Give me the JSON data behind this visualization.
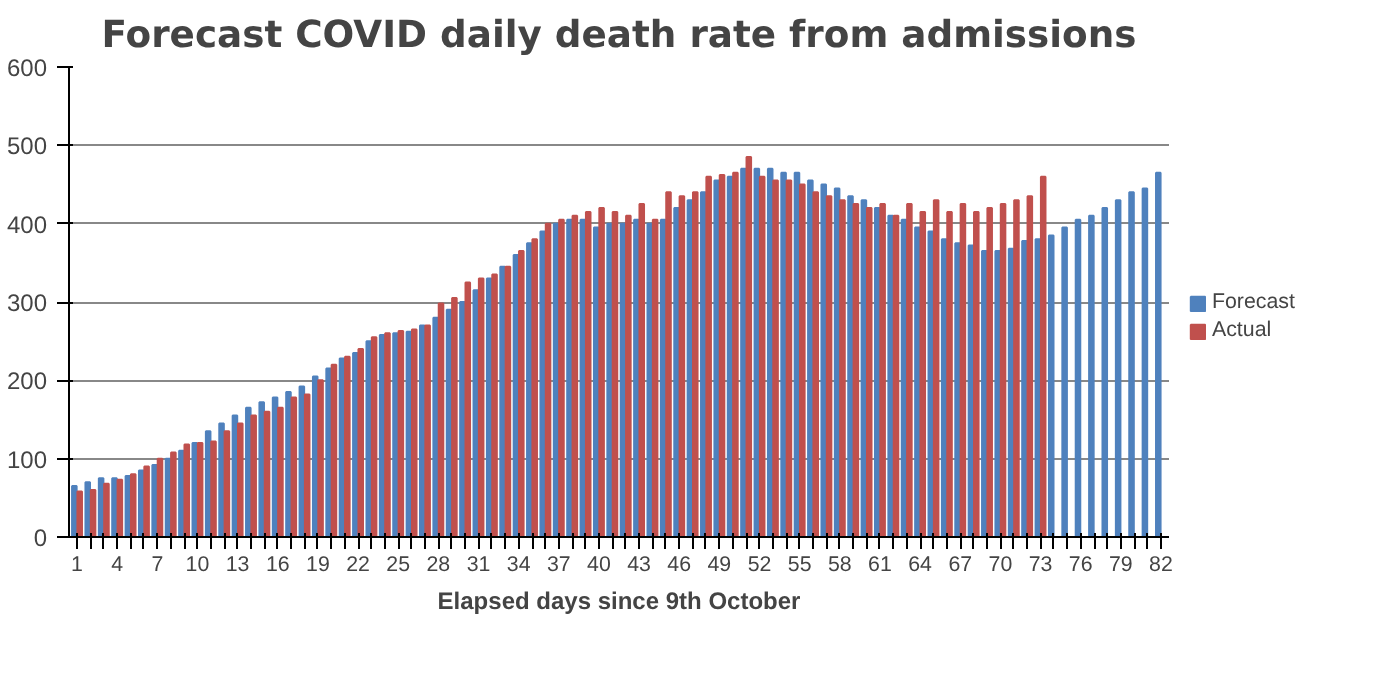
{
  "chart_data": {
    "type": "bar",
    "title": "Forecast COVID daily death rate from admissions",
    "xlabel": "Elapsed days since 9th October",
    "categories": [
      "1",
      null,
      null,
      "4",
      null,
      null,
      "7",
      null,
      null,
      "10",
      null,
      null,
      "13",
      null,
      null,
      "16",
      null,
      null,
      "19",
      null,
      null,
      "22",
      null,
      null,
      "25",
      null,
      null,
      "28",
      null,
      null,
      "31",
      null,
      null,
      "34",
      null,
      null,
      "37",
      null,
      null,
      "40",
      null,
      null,
      "43",
      null,
      null,
      "46",
      null,
      null,
      "49",
      null,
      null,
      "52",
      null,
      null,
      "55",
      null,
      null,
      "58",
      null,
      null,
      "61",
      null,
      null,
      "64",
      null,
      null,
      "67",
      null,
      null,
      "70",
      null,
      null,
      "73",
      null,
      null,
      "76",
      null,
      null,
      "79",
      null,
      null,
      "82"
    ],
    "series": [
      {
        "name": "Forecast",
        "color": "#4f81bd",
        "values": [
          65,
          70,
          75,
          75,
          78,
          85,
          92,
          100,
          110,
          120,
          135,
          145,
          155,
          165,
          172,
          178,
          185,
          192,
          205,
          215,
          228,
          235,
          250,
          258,
          260,
          262,
          270,
          280,
          290,
          300,
          315,
          330,
          345,
          360,
          375,
          390,
          400,
          405,
          405,
          395,
          400,
          400,
          405,
          400,
          405,
          420,
          430,
          440,
          455,
          460,
          470,
          470,
          470,
          465,
          465,
          455,
          450,
          445,
          435,
          430,
          420,
          410,
          405,
          395,
          390,
          380,
          375,
          372,
          365,
          365,
          368,
          378,
          380,
          385,
          395,
          405,
          410,
          420,
          430,
          440,
          445,
          465
        ]
      },
      {
        "name": "Actual",
        "color": "#c0504d",
        "values": [
          58,
          60,
          68,
          73,
          80,
          90,
          100,
          108,
          118,
          120,
          122,
          135,
          145,
          155,
          160,
          165,
          178,
          182,
          200,
          220,
          230,
          240,
          255,
          260,
          263,
          265,
          270,
          298,
          305,
          325,
          330,
          335,
          345,
          365,
          380,
          400,
          405,
          410,
          415,
          420,
          415,
          410,
          425,
          405,
          440,
          435,
          440,
          460,
          462,
          465,
          485,
          460,
          455,
          455,
          450,
          440,
          435,
          430,
          425,
          420,
          425,
          410,
          425,
          415,
          430,
          415,
          425,
          415,
          420,
          425,
          430,
          435,
          460,
          null,
          null,
          null,
          null,
          null,
          null,
          null,
          null,
          null
        ]
      }
    ],
    "ylim": [
      0,
      600
    ],
    "yticks": [
      0,
      100,
      200,
      300,
      400,
      500,
      600
    ],
    "grid": "y",
    "legend": "right"
  }
}
